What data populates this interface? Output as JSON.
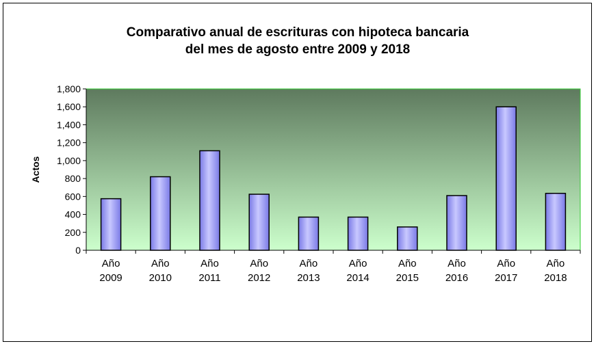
{
  "chart_data": {
    "type": "bar",
    "title_lines": [
      "Comparativo anual de escrituras con hipoteca bancaria",
      "del mes de agosto entre 2009 y 2018"
    ],
    "ylabel": "Actos",
    "xlabel": "",
    "ylim": [
      0,
      1800
    ],
    "yticks": [
      0,
      200,
      400,
      600,
      800,
      1000,
      1200,
      1400,
      1600,
      1800
    ],
    "ytick_labels": [
      "0",
      "200",
      "400",
      "600",
      "800",
      "1,000",
      "1,200",
      "1,400",
      "1,600",
      "1,800"
    ],
    "categories": [
      [
        "Año",
        "2009"
      ],
      [
        "Año",
        "2010"
      ],
      [
        "Año",
        "2011"
      ],
      [
        "Año",
        "2012"
      ],
      [
        "Año",
        "2013"
      ],
      [
        "Año",
        "2014"
      ],
      [
        "Año",
        "2015"
      ],
      [
        "Año",
        "2016"
      ],
      [
        "Año",
        "2017"
      ],
      [
        "Año",
        "2018"
      ]
    ],
    "values": [
      575,
      820,
      1110,
      625,
      370,
      370,
      260,
      610,
      1600,
      635
    ],
    "grid": false,
    "legend": "none",
    "colors": {
      "bar_fill_light": "#c8c8ff",
      "bar_fill_dark": "#7a7ae6",
      "bar_stroke": "#000000",
      "plot_bg_top": "#5e7a5e",
      "plot_bg_bottom": "#ccffcc",
      "plot_border": "#33cc33"
    }
  }
}
